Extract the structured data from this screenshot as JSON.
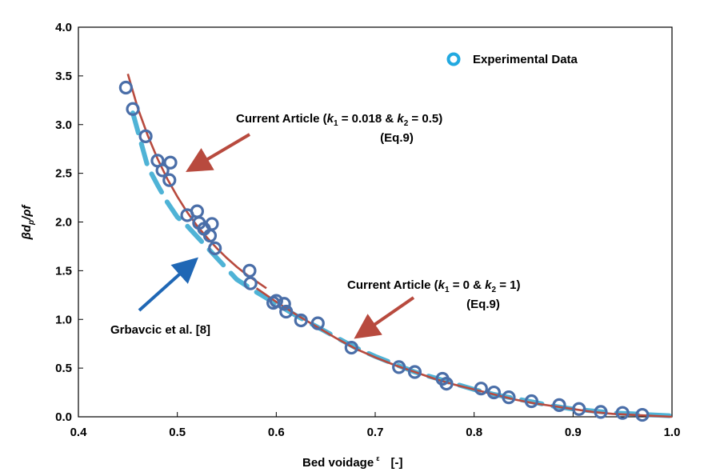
{
  "chart_data": {
    "type": "scatter",
    "xlabel": "Bed voidage",
    "xlabel_symbol": "ε",
    "xlabel_unit": "[-]",
    "ylabel_parts": [
      "βd",
      "p",
      "/ρf"
    ],
    "xlim": [
      0.4,
      1.0
    ],
    "ylim": [
      0.0,
      4.0
    ],
    "x_ticks": [
      0.4,
      0.5,
      0.6,
      0.7,
      0.8,
      0.9,
      1.0
    ],
    "y_ticks": [
      0.0,
      0.5,
      1.0,
      1.5,
      2.0,
      2.5,
      3.0,
      3.5,
      4.0
    ],
    "x_tick_labels": [
      "0.4",
      "0.5",
      "0.6",
      "0.7",
      "0.8",
      "0.9",
      "1.0"
    ],
    "y_tick_labels": [
      "0.0",
      "0.5",
      "1.0",
      "1.5",
      "2.0",
      "2.5",
      "3.0",
      "3.5",
      "4.0"
    ],
    "grid": false,
    "legend": {
      "position": "top-right",
      "label": "Experimental Data"
    },
    "series": [
      {
        "name": "Experimental Data",
        "kind": "scatter",
        "color": "#4a6ea8",
        "points": [
          [
            0.448,
            3.38
          ],
          [
            0.455,
            3.16
          ],
          [
            0.468,
            2.88
          ],
          [
            0.48,
            2.63
          ],
          [
            0.485,
            2.53
          ],
          [
            0.493,
            2.61
          ],
          [
            0.492,
            2.43
          ],
          [
            0.51,
            2.07
          ],
          [
            0.52,
            2.11
          ],
          [
            0.522,
            1.99
          ],
          [
            0.527,
            1.93
          ],
          [
            0.533,
            1.86
          ],
          [
            0.535,
            1.98
          ],
          [
            0.538,
            1.73
          ],
          [
            0.573,
            1.5
          ],
          [
            0.574,
            1.37
          ],
          [
            0.597,
            1.17
          ],
          [
            0.6,
            1.19
          ],
          [
            0.608,
            1.16
          ],
          [
            0.61,
            1.08
          ],
          [
            0.625,
            0.99
          ],
          [
            0.642,
            0.96
          ],
          [
            0.676,
            0.71
          ],
          [
            0.724,
            0.51
          ],
          [
            0.74,
            0.46
          ],
          [
            0.768,
            0.39
          ],
          [
            0.772,
            0.34
          ],
          [
            0.807,
            0.29
          ],
          [
            0.82,
            0.25
          ],
          [
            0.835,
            0.2
          ],
          [
            0.858,
            0.16
          ],
          [
            0.886,
            0.12
          ],
          [
            0.906,
            0.08
          ],
          [
            0.928,
            0.05
          ],
          [
            0.95,
            0.04
          ],
          [
            0.97,
            0.02
          ]
        ]
      },
      {
        "name": "Current Article (k1 = 0.018 & k2 = 0.5)",
        "kind": "line",
        "color": "#b84a3e",
        "x": [
          0.45,
          0.46,
          0.47,
          0.48,
          0.49,
          0.5,
          0.51,
          0.52,
          0.53,
          0.54,
          0.55,
          0.56,
          0.57,
          0.58,
          0.59
        ],
        "values": [
          3.52,
          3.17,
          2.89,
          2.65,
          2.44,
          2.26,
          2.1,
          1.96,
          1.84,
          1.73,
          1.63,
          1.54,
          1.46,
          1.39,
          1.32
        ]
      },
      {
        "name": "Current Article (k1 = 0 & k2 = 1)",
        "kind": "line",
        "color": "#b84a3e",
        "x": [
          0.58,
          0.6,
          0.62,
          0.64,
          0.66,
          0.68,
          0.7,
          0.72,
          0.74,
          0.76,
          0.78,
          0.8,
          0.82,
          0.84,
          0.86,
          0.88,
          0.9,
          0.92,
          0.94,
          0.96,
          0.98,
          1.0
        ],
        "values": [
          1.32,
          1.18,
          1.05,
          0.93,
          0.81,
          0.7,
          0.61,
          0.53,
          0.46,
          0.39,
          0.33,
          0.28,
          0.23,
          0.18,
          0.14,
          0.11,
          0.08,
          0.05,
          0.03,
          0.02,
          0.01,
          0.0
        ]
      },
      {
        "name": "Grbavcic et al. [8]",
        "kind": "dashed-line",
        "color": "#4fb3d6",
        "x": [
          0.455,
          0.47,
          0.48,
          0.49,
          0.5,
          0.51,
          0.52,
          0.53,
          0.54,
          0.55,
          0.56,
          0.58,
          0.6,
          0.62,
          0.64,
          0.66,
          0.68,
          0.7,
          0.72,
          0.74,
          0.76,
          0.78,
          0.8,
          0.82,
          0.84,
          0.86,
          0.88,
          0.9,
          0.92,
          0.94,
          0.96,
          0.98,
          1.0
        ],
        "values": [
          3.12,
          2.57,
          2.38,
          2.2,
          2.05,
          1.96,
          1.85,
          1.74,
          1.63,
          1.52,
          1.41,
          1.28,
          1.16,
          1.04,
          0.93,
          0.82,
          0.71,
          0.62,
          0.54,
          0.46,
          0.4,
          0.34,
          0.28,
          0.23,
          0.19,
          0.15,
          0.11,
          0.08,
          0.06,
          0.04,
          0.03,
          0.02,
          0.01
        ]
      }
    ],
    "annotations": [
      {
        "id": "ann1",
        "line1": "Current Article (",
        "k_sym": "k",
        "sub1": "1",
        "mid": " = 0.018 & ",
        "sub2": "2",
        "tail": " = 0.5)",
        "eq": "(Eq.9)",
        "arrow_color": "#b84a3e"
      },
      {
        "id": "ann2",
        "line1": "Current Article (",
        "k_sym": "k",
        "sub1": "1",
        "mid": " = 0 & ",
        "sub2": "2",
        "tail": " = 1)",
        "eq": "(Eq.9)",
        "arrow_color": "#b84a3e"
      },
      {
        "id": "ann3",
        "text": "Grbavcic et al. [8]",
        "arrow_color": "#1f67b5"
      }
    ]
  }
}
